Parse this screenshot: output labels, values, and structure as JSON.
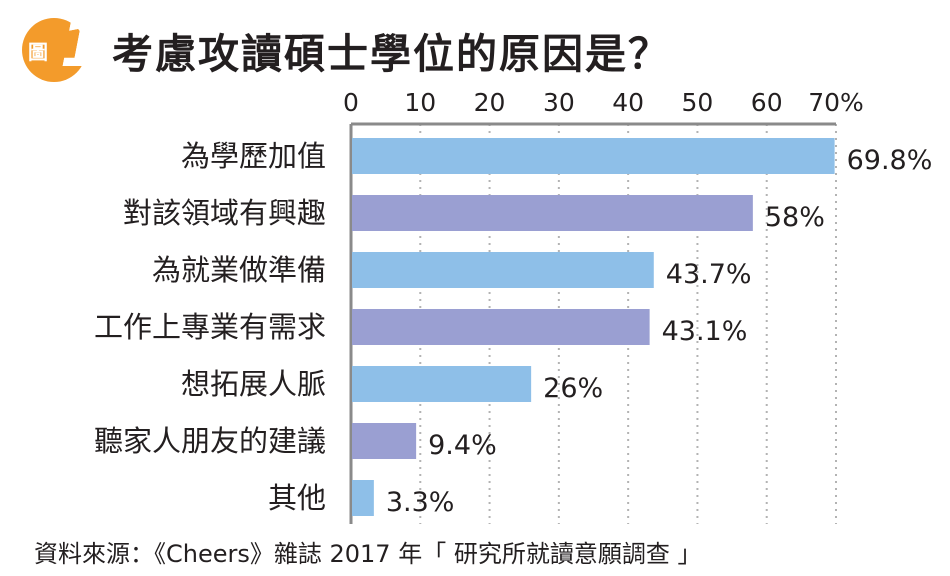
{
  "badge": {
    "label": "圖",
    "number": "1"
  },
  "title": "考慮攻讀碩士學位的原因是？",
  "source": "資料來源：《Cheers》雜誌 2017 年「 研究所就讀意願調查 」",
  "colors": {
    "bar_light": "#8ebfe8",
    "bar_purple": "#9a9fd2",
    "badge": "#f39b2b",
    "grid": "#b3b3b3"
  },
  "chart_data": {
    "type": "bar",
    "orientation": "horizontal",
    "title": "考慮攻讀碩士學位的原因是？",
    "categories": [
      "為學歷加值",
      "對該領域有興趣",
      "為就業做準備",
      "工作上專業有需求",
      "想拓展人脈",
      "聽家人朋友的建議",
      "其他"
    ],
    "values": [
      69.8,
      58,
      43.7,
      43.1,
      26,
      9.4,
      3.3
    ],
    "value_labels": [
      "69.8%",
      "58%",
      "43.7%",
      "43.1%",
      "26%",
      "9.4%",
      "3.3%"
    ],
    "bar_colors": [
      "#8ebfe8",
      "#9a9fd2",
      "#8ebfe8",
      "#9a9fd2",
      "#8ebfe8",
      "#9a9fd2",
      "#8ebfe8"
    ],
    "xlim": [
      0,
      70
    ],
    "xticks": [
      0,
      10,
      20,
      30,
      40,
      50,
      60,
      70
    ],
    "xtick_labels": [
      "0",
      "10",
      "20",
      "30",
      "40",
      "50",
      "60",
      "70%"
    ],
    "axis_position": "top",
    "grid": true
  }
}
